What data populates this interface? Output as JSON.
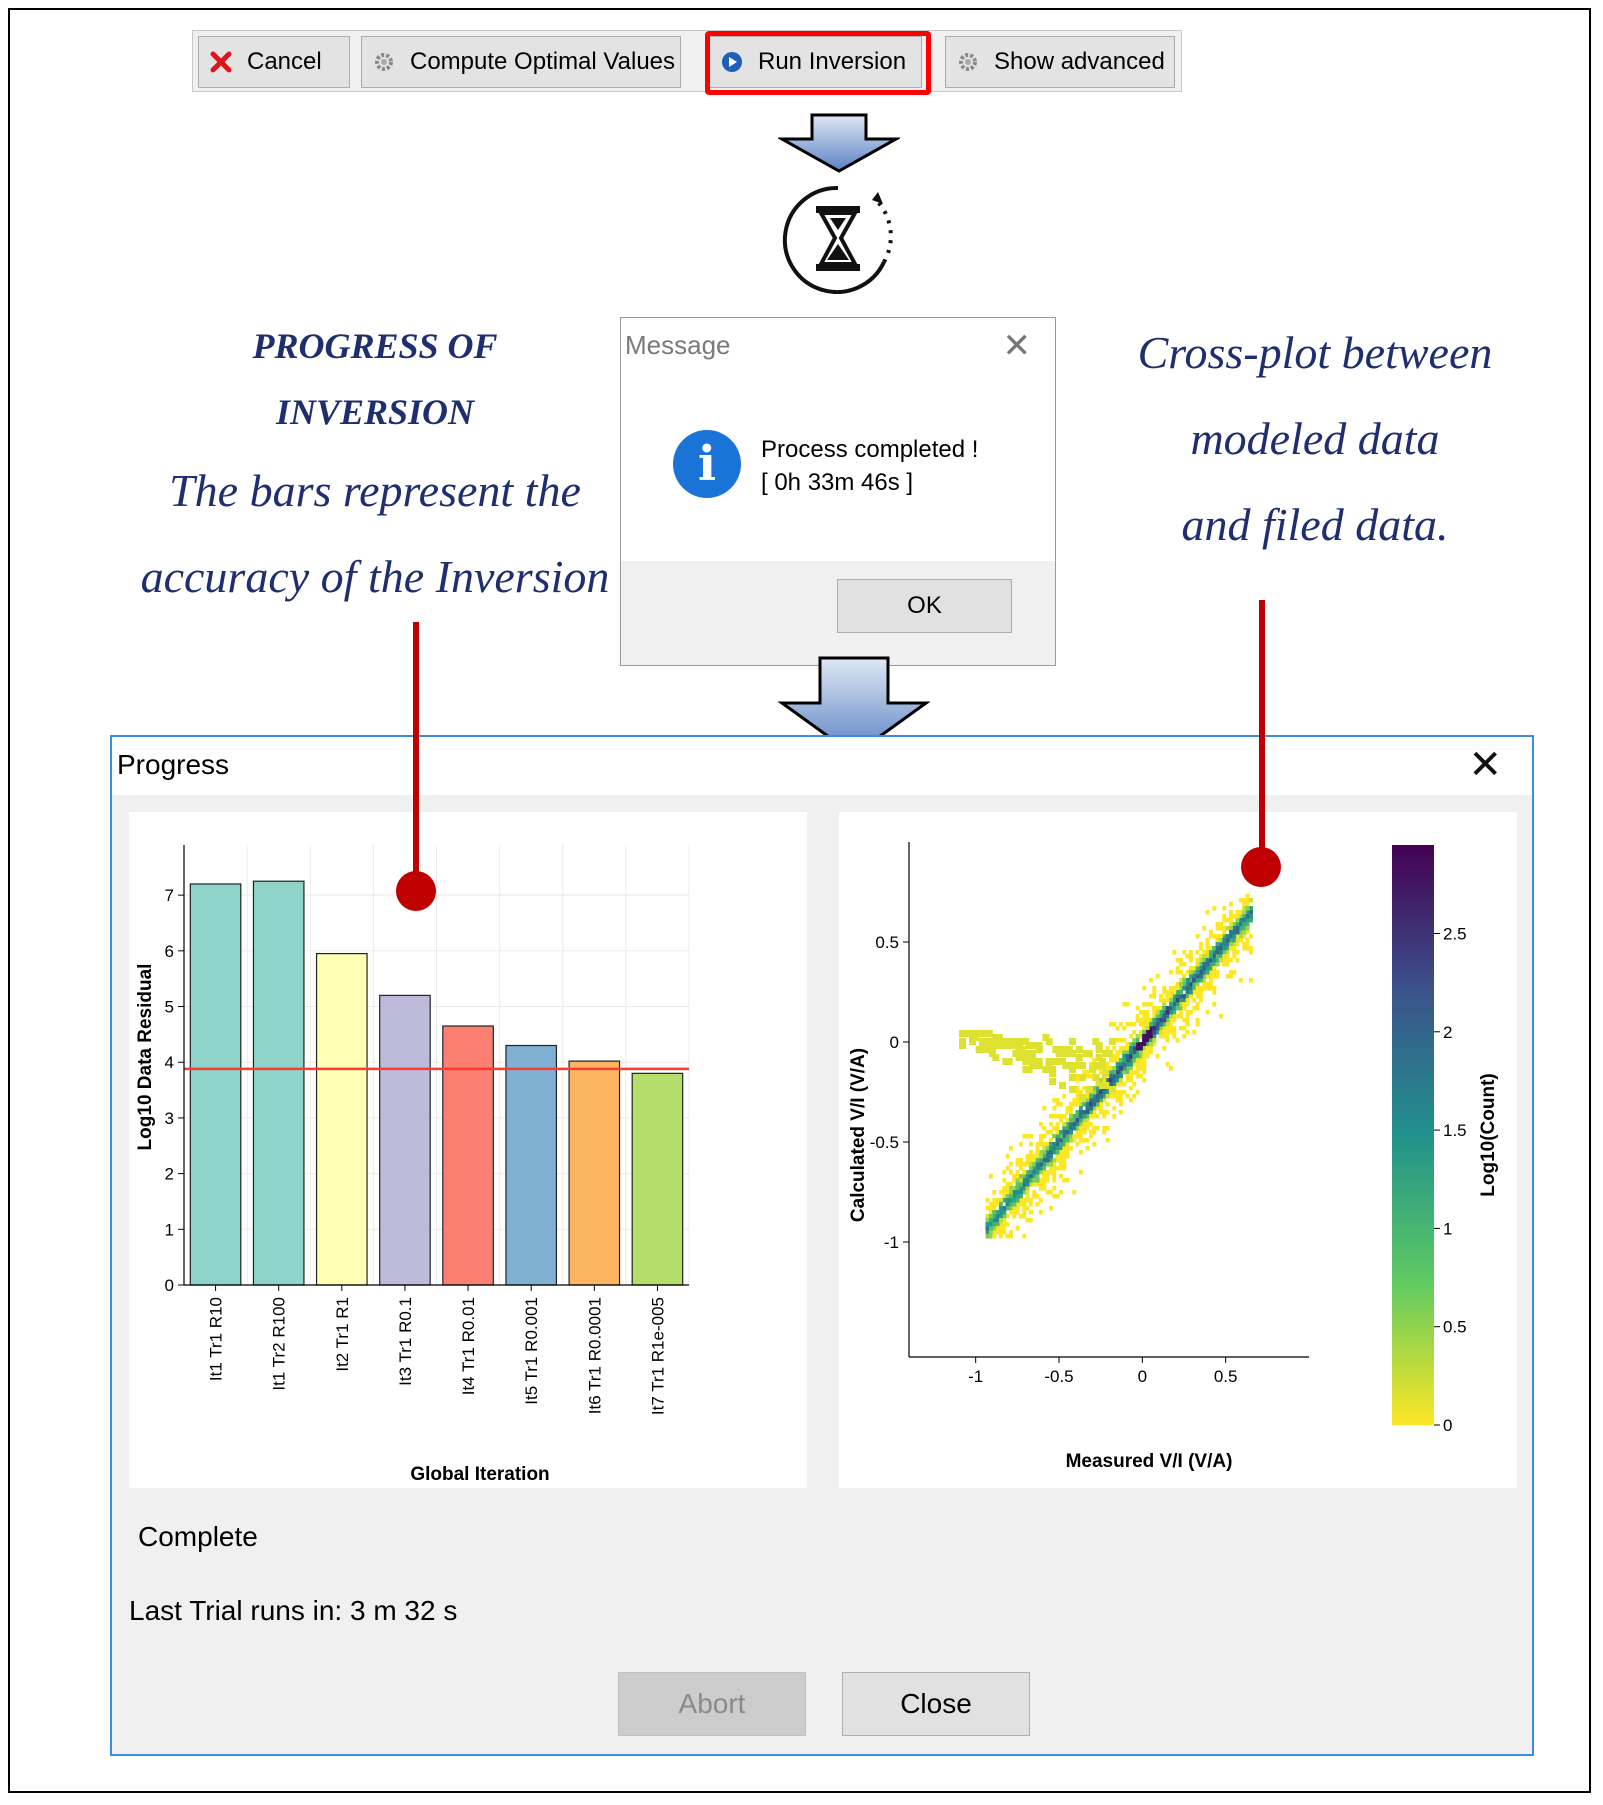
{
  "toolbar": {
    "cancel_label": "Cancel",
    "compute_label": "Compute Optimal Values",
    "run_label": "Run Inversion",
    "show_label": "Show advanced"
  },
  "annotations": {
    "left_title_line1": "PROGRESS OF",
    "left_title_line2": "INVERSION",
    "left_body_line1": "The bars represent the",
    "left_body_line2": "accuracy of  the Inversion",
    "right_line1": "Cross-plot between",
    "right_line2": "modeled data",
    "right_line3": "and filed data."
  },
  "message_dialog": {
    "title": "Message",
    "close_glyph": "✕",
    "text_line1": "Process completed !",
    "text_line2": "[ 0h 33m 46s ]",
    "ok_label": "OK"
  },
  "progress_window": {
    "title": "Progress",
    "close_glyph": "✕",
    "status": "Complete",
    "last_trial": "Last Trial runs in: 3 m 32 s",
    "abort_label": "Abort",
    "close_label": "Close"
  },
  "chart_data": [
    {
      "type": "bar",
      "xlabel": "Global Iteration",
      "ylabel": "Log10 Data Residual",
      "categories": [
        "It1 Tr1 R10",
        "It1 Tr2 R100",
        "It2 Tr1 R1",
        "It3 Tr1 R0.1",
        "It4 Tr1 R0.01",
        "It5 Tr1 R0.001",
        "It6 Tr1 R0.0001",
        "It7 Tr1 R1e-005"
      ],
      "values": [
        7.2,
        7.25,
        5.95,
        5.2,
        4.65,
        4.3,
        4.02,
        3.8
      ],
      "colors": [
        "#8dd3c7",
        "#8dd3c7",
        "#ffffb3",
        "#bebada",
        "#fb8072",
        "#80b1d3",
        "#fdb462",
        "#b3de69"
      ],
      "yticks": [
        0,
        1,
        2,
        3,
        4,
        5,
        6,
        7
      ],
      "ylim": [
        0,
        7.9
      ],
      "reference_line": {
        "y": 3.88,
        "color": "#ff3b30"
      },
      "grid": true
    },
    {
      "type": "heatmap",
      "xlabel": "Measured V/I (V/A)",
      "ylabel": "Calculated V/I (V/A)",
      "xticks": [
        -1,
        -0.5,
        0,
        0.5
      ],
      "yticks": [
        -1,
        -0.5,
        0,
        0.5
      ],
      "xlim": [
        -1.4,
        1.0
      ],
      "ylim": [
        -1.5,
        1.0
      ],
      "colorbar": {
        "label": "Log10(Count)",
        "ticks": [
          0,
          0.5,
          1,
          1.5,
          2,
          2.5
        ],
        "range": [
          0,
          2.95
        ],
        "colors": [
          "#fde725",
          "#5ec962",
          "#21918c",
          "#3b528b",
          "#440154"
        ]
      }
    }
  ]
}
